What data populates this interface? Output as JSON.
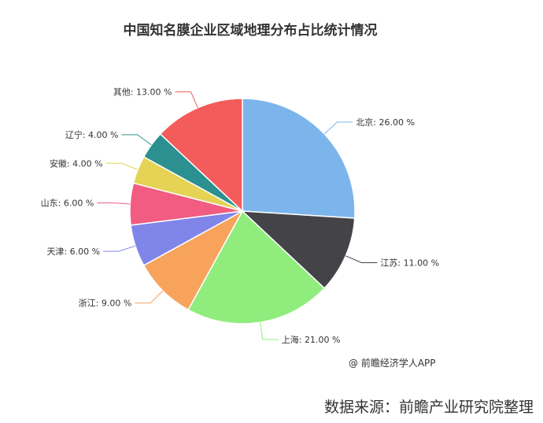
{
  "chart_data": {
    "type": "pie",
    "title": "中国知名膜企业区域地理分布占比统计情况",
    "unit": "%",
    "slices": [
      {
        "name": "北京",
        "value": 26.0,
        "label": "北京: 26.00 %",
        "color": "#7cb5ec"
      },
      {
        "name": "江苏",
        "value": 11.0,
        "label": "江苏: 11.00 %",
        "color": "#434348"
      },
      {
        "name": "上海",
        "value": 21.0,
        "label": "上海: 21.00 %",
        "color": "#90ed7d"
      },
      {
        "name": "浙江",
        "value": 9.0,
        "label": "浙江: 9.00 %",
        "color": "#f7a35c"
      },
      {
        "name": "天津",
        "value": 6.0,
        "label": "天津: 6.00 %",
        "color": "#8085e9"
      },
      {
        "name": "山东",
        "value": 6.0,
        "label": "山东: 6.00 %",
        "color": "#f15c80"
      },
      {
        "name": "安徽",
        "value": 4.0,
        "label": "安徽: 4.00 %",
        "color": "#e4d354"
      },
      {
        "name": "辽宁",
        "value": 4.0,
        "label": "辽宁: 4.00 %",
        "color": "#2b908f"
      },
      {
        "name": "其他",
        "value": 13.0,
        "label": "其他: 13.00 %",
        "color": "#f45b5b"
      }
    ]
  },
  "credit": "@ 前瞻经济学人APP",
  "source": "数据来源：前瞻产业研究院整理"
}
